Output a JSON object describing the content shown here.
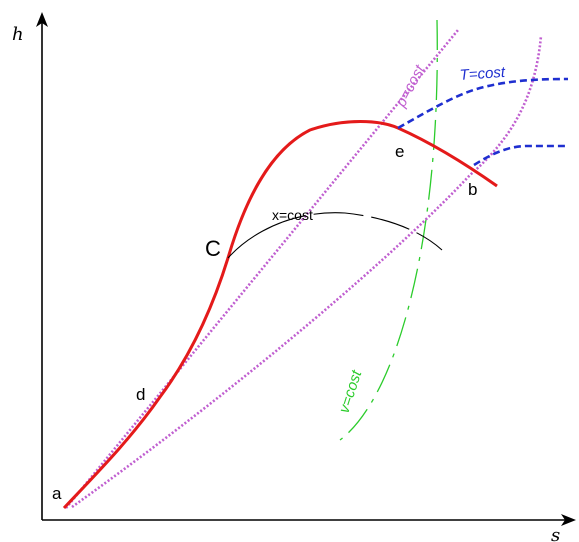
{
  "axes": {
    "y_label": "h",
    "x_label": "s"
  },
  "points": {
    "a": "a",
    "d": "d",
    "c": "C",
    "e": "e",
    "b": "b"
  },
  "isolines": {
    "pressure": "p=cost",
    "temperature": "T=cost",
    "quality": "x=cost",
    "volume": "v=cost"
  },
  "colors": {
    "axis": "#000000",
    "saturation_curve": "#e41a1a",
    "isobar": "#c05fd0",
    "isotherm": "#1f2fd0",
    "isochore": "#2ccc2c",
    "quality_line": "#000000"
  }
}
